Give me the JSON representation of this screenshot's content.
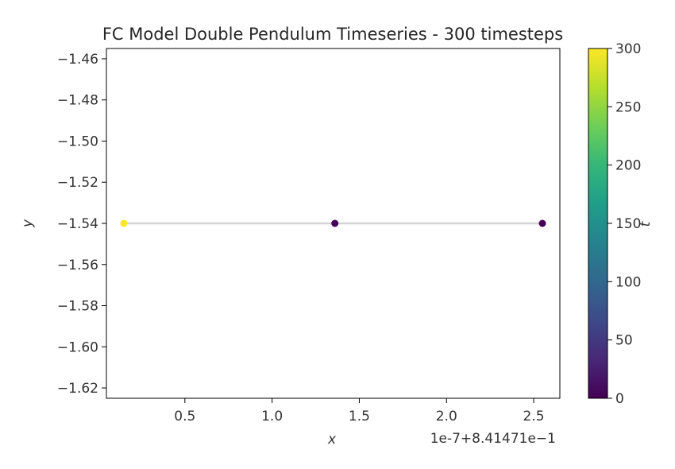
{
  "chart_data": {
    "type": "scatter",
    "title": "FC Model Double Pendulum Timeseries - 300 timesteps",
    "xlabel": "x",
    "ylabel": "y",
    "x_offset_label": "1e-7+8.41471e−1",
    "xlim": [
      0.05,
      2.65
    ],
    "ylim": [
      -1.625,
      -1.455
    ],
    "xticks": [
      0.5,
      1.0,
      1.5,
      2.0,
      2.5
    ],
    "xtick_labels": [
      "0.5",
      "1.0",
      "1.5",
      "2.0",
      "2.5"
    ],
    "yticks": [
      -1.46,
      -1.48,
      -1.5,
      -1.52,
      -1.54,
      -1.56,
      -1.58,
      -1.6,
      -1.62
    ],
    "ytick_labels": [
      "−1.46",
      "−1.48",
      "−1.50",
      "−1.52",
      "−1.54",
      "−1.56",
      "−1.58",
      "−1.60",
      "−1.62"
    ],
    "grid": false,
    "line": {
      "x": [
        0.15,
        2.55
      ],
      "y": [
        -1.54,
        -1.54
      ],
      "color": "#d3d3d3"
    },
    "points": [
      {
        "x": 2.55,
        "y": -1.54,
        "t": 0
      },
      {
        "x": 1.36,
        "y": -1.54,
        "t": 1
      },
      {
        "x": 0.15,
        "y": -1.54,
        "t": 300
      }
    ],
    "colorbar": {
      "label": "t",
      "min": 0,
      "max": 300,
      "ticks": [
        0,
        50,
        100,
        150,
        200,
        250,
        300
      ],
      "tick_labels": [
        "0",
        "50",
        "100",
        "150",
        "200",
        "250",
        "300"
      ],
      "colormap": "viridis",
      "colors": [
        "#440154",
        "#482878",
        "#3e4989",
        "#31688e",
        "#26828e",
        "#1f9e89",
        "#35b779",
        "#6ece58",
        "#b5de2b",
        "#fde725"
      ]
    }
  }
}
